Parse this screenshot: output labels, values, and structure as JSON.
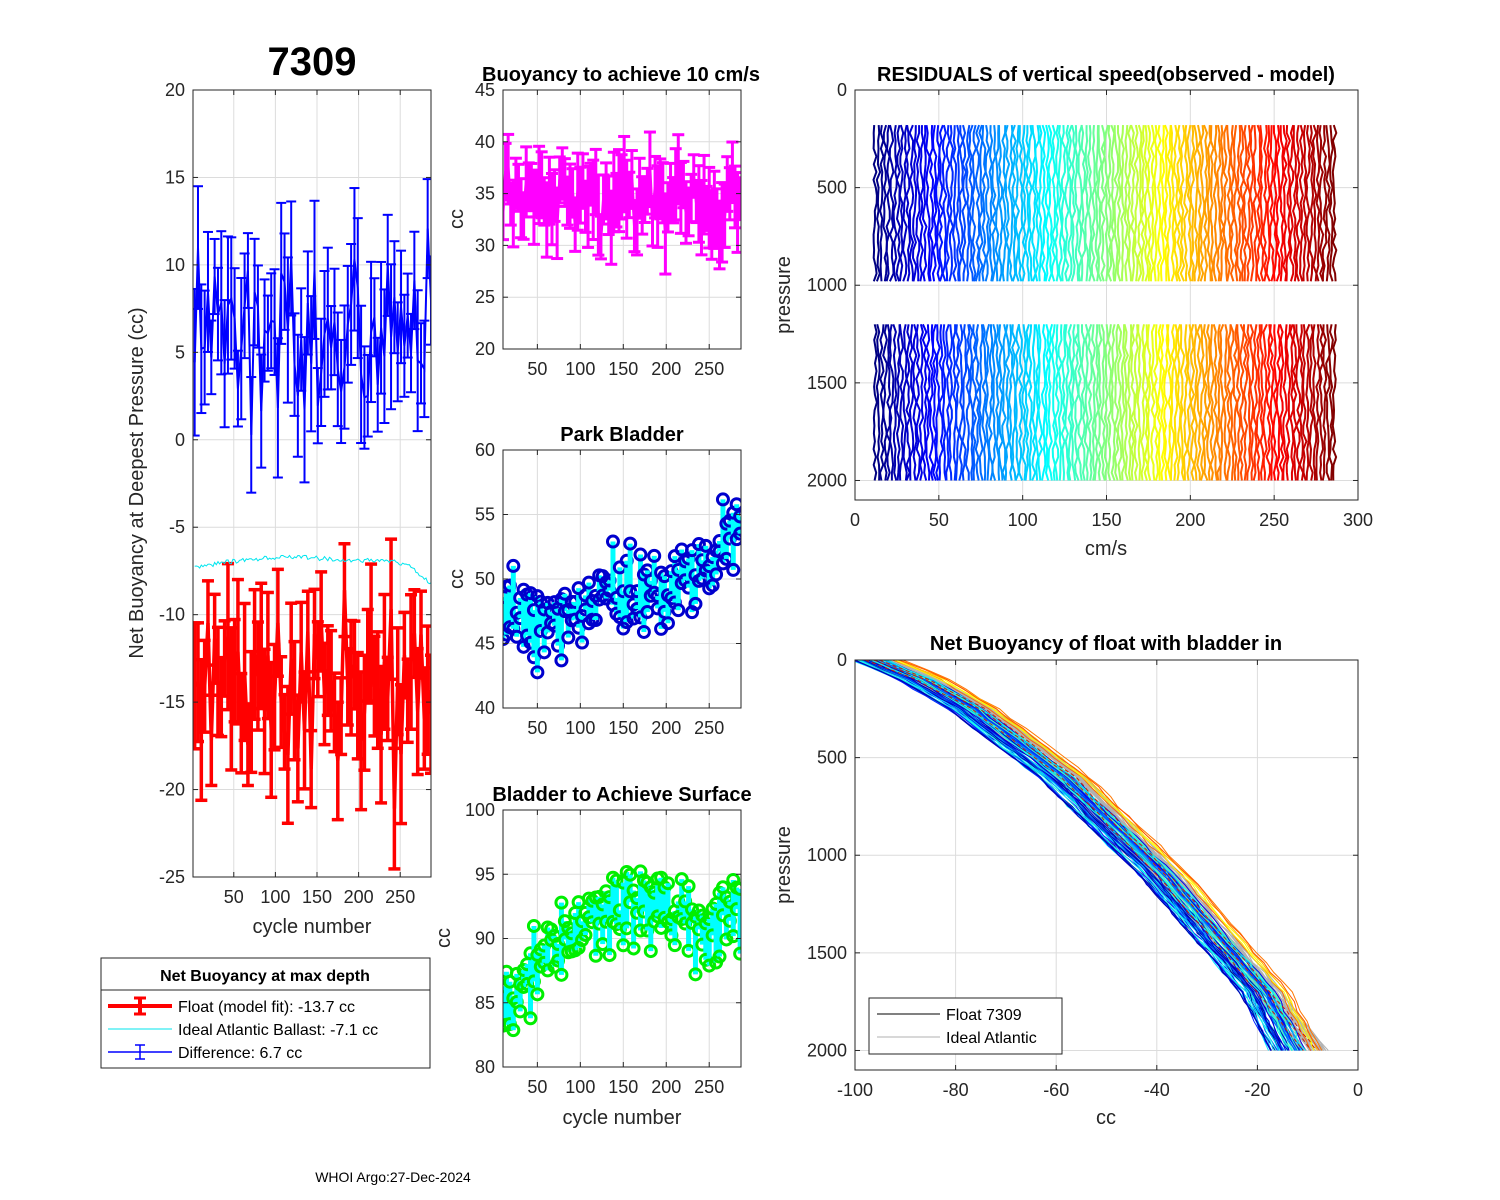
{
  "figure": {
    "float_id": "7309",
    "footer": "WHOI Argo:27-Dec-2024"
  },
  "chart_data": [
    {
      "id": "net_buoyancy",
      "type": "line",
      "title": "7309",
      "xlabel": "cycle number",
      "ylabel": "Net Buoyancy at Deepest Pressure (cc)",
      "xlim": [
        1,
        287
      ],
      "ylim": [
        -25,
        20
      ],
      "xticks": [
        50,
        100,
        150,
        200,
        250
      ],
      "yticks": [
        -25,
        -20,
        -15,
        -10,
        -5,
        0,
        5,
        10,
        15,
        20
      ],
      "legend": {
        "title": "Net Buoyancy at max depth",
        "entries": [
          "Float (model fit): -13.7 cc",
          "Ideal Atlantic Ballast:  -7.1 cc",
          "Difference:   6.7 cc"
        ]
      },
      "series": [
        {
          "name": "Float (model fit)",
          "color": "#ff0000",
          "mean": -13.7,
          "spread": 3.5,
          "error": 3.5,
          "x_start": 3,
          "x_end": 287
        },
        {
          "name": "Ideal Atlantic Ballast",
          "color": "#00e5ee",
          "x": [
            3,
            40,
            80,
            120,
            160,
            200,
            240,
            260,
            280,
            287
          ],
          "y": [
            -7.3,
            -7.0,
            -6.8,
            -6.7,
            -6.8,
            -6.9,
            -6.9,
            -7.2,
            -8.0,
            -8.2
          ]
        },
        {
          "name": "Difference",
          "color": "#0000ff",
          "mean": 6.7,
          "spread": 3.5,
          "error": 3.5,
          "x_start": 3,
          "x_end": 287
        }
      ]
    },
    {
      "id": "buoyancy_10cms",
      "type": "line",
      "title": "Buoyancy to achieve 10 cm/s",
      "xlabel": "",
      "ylabel": "cc",
      "xlim": [
        10,
        287
      ],
      "ylim": [
        20,
        45
      ],
      "xticks": [
        50,
        100,
        150,
        200,
        250
      ],
      "yticks": [
        20,
        25,
        30,
        35,
        40,
        45
      ],
      "series": [
        {
          "name": "buoyancy to 10 cm/s",
          "color": "#ff00ff",
          "mean": 34.5,
          "spread": 2.4,
          "error": 3.3,
          "x_start": 10,
          "x_end": 287
        }
      ]
    },
    {
      "id": "park_bladder",
      "type": "scatter",
      "title": "Park Bladder",
      "xlabel": "",
      "ylabel": "cc",
      "xlim": [
        10,
        287
      ],
      "ylim": [
        40,
        60
      ],
      "xticks": [
        50,
        100,
        150,
        200,
        250
      ],
      "yticks": [
        40,
        45,
        50,
        55,
        60
      ],
      "series": [
        {
          "name": "park bladder range",
          "color": "#00ffff",
          "marker_color": "#0000cd",
          "x": [
            10,
            50,
            100,
            150,
            200,
            240,
            270,
            287
          ],
          "y": [
            48,
            46,
            48,
            48.5,
            49,
            50.5,
            53,
            54
          ]
        }
      ]
    },
    {
      "id": "bladder_surface",
      "type": "scatter",
      "title": "Bladder to Achieve Surface",
      "xlabel": "cycle number",
      "ylabel": "cc",
      "xlim": [
        10,
        287
      ],
      "ylim": [
        80,
        100
      ],
      "xticks": [
        50,
        100,
        150,
        200,
        250
      ],
      "yticks": [
        80,
        85,
        90,
        95,
        100
      ],
      "series": [
        {
          "name": "surface bladder range",
          "color": "#00ffff",
          "marker_color": "#00ee00",
          "x": [
            10,
            30,
            60,
            100,
            150,
            200,
            250,
            287
          ],
          "y": [
            84,
            86,
            89,
            91.5,
            93,
            92.5,
            91,
            92
          ]
        }
      ]
    },
    {
      "id": "residuals",
      "type": "line",
      "title": "RESIDUALS of vertical speed(observed - model)",
      "xlabel": "cm/s",
      "ylabel": "pressure",
      "xlim": [
        0,
        300
      ],
      "ylim": [
        2100,
        0
      ],
      "xticks": [
        0,
        50,
        100,
        150,
        200,
        250,
        300
      ],
      "yticks": [
        0,
        500,
        1000,
        1500,
        2000
      ],
      "profile_segments": [
        [
          180,
          1010
        ],
        [
          1200,
          2000
        ]
      ],
      "colormap": "jet",
      "n_profiles": 140,
      "x_start": 12,
      "x_end": 286
    },
    {
      "id": "net_buoyancy_bladder_in",
      "type": "line",
      "title": "Net Buoyancy of float with bladder in",
      "xlabel": "cc",
      "ylabel": "pressure",
      "xlim": [
        -100,
        0
      ],
      "ylim": [
        2100,
        0
      ],
      "xticks": [
        -100,
        -80,
        -60,
        -40,
        -20,
        0
      ],
      "yticks": [
        0,
        500,
        1000,
        1500,
        2000
      ],
      "legend": {
        "entries": [
          "Float 7309",
          "Ideal Atlantic"
        ]
      },
      "series": [
        {
          "name": "Float 7309",
          "color": "#000000",
          "x": [
            -97,
            -88,
            -78,
            -60,
            -40,
            -20,
            -14
          ],
          "y": [
            0,
            100,
            250,
            600,
            1100,
            1700,
            2000
          ]
        },
        {
          "name": "Ideal Atlantic",
          "color": "#b0b0b0",
          "x": [
            -96,
            -86,
            -75,
            -57,
            -38,
            -18,
            -9
          ],
          "y": [
            0,
            100,
            250,
            600,
            1100,
            1700,
            2000
          ]
        }
      ]
    }
  ]
}
